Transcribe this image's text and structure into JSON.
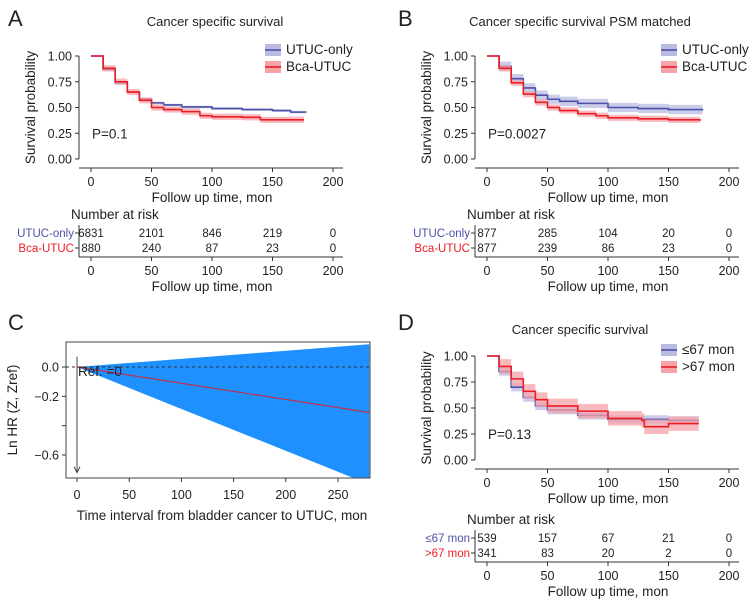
{
  "colors": {
    "blue": "#4b50a8",
    "blue_band": "#b9bbe2",
    "red": "#ec1c24",
    "red_band": "#f6a3aa",
    "hr_band": "#1e90ff",
    "hr_line": "#c0304a"
  },
  "chart_data": [
    {
      "panel": "A",
      "type": "line",
      "title": "Cancer specific survival",
      "xlabel": "Follow up time, mon",
      "ylabel": "Survival probability",
      "xlim": [
        0,
        200
      ],
      "ylim": [
        0,
        1
      ],
      "xticks": [
        "0",
        "50",
        "100",
        "150",
        "200"
      ],
      "yticks": [
        "0.00",
        "0.25",
        "0.50",
        "0.75",
        "1.00"
      ],
      "pvalue": "P=0.1",
      "legend_position": "top-right",
      "series": [
        {
          "name": "UTUC-only",
          "color": "blue",
          "x": [
            0,
            10,
            20,
            30,
            40,
            50,
            60,
            75,
            100,
            125,
            150,
            165,
            178
          ],
          "y": [
            1,
            0.87,
            0.74,
            0.65,
            0.58,
            0.545,
            0.525,
            0.505,
            0.49,
            0.48,
            0.47,
            0.455,
            0.455
          ],
          "band": 0.012
        },
        {
          "name": "Bca-UTUC",
          "color": "red",
          "x": [
            0,
            10,
            20,
            30,
            40,
            50,
            60,
            75,
            90,
            100,
            125,
            140,
            176
          ],
          "y": [
            1,
            0.88,
            0.75,
            0.65,
            0.57,
            0.5,
            0.48,
            0.46,
            0.42,
            0.41,
            0.405,
            0.38,
            0.38
          ],
          "band": 0.03
        }
      ],
      "risk_title": "Number at risk",
      "risk_table": [
        {
          "name": "UTUC-only",
          "color": "blue",
          "values": [
            "6831",
            "2101",
            "846",
            "219",
            "0"
          ]
        },
        {
          "name": "Bca-UTUC",
          "color": "red",
          "values": [
            "880",
            "240",
            "87",
            "23",
            "0"
          ]
        }
      ]
    },
    {
      "panel": "B",
      "type": "line",
      "title": "Cancer specific survival PSM matched",
      "xlabel": "Follow up time, mon",
      "ylabel": "Survival probability",
      "xlim": [
        0,
        200
      ],
      "ylim": [
        0,
        1
      ],
      "xticks": [
        "0",
        "50",
        "100",
        "150",
        "200"
      ],
      "yticks": [
        "0.00",
        "0.25",
        "0.50",
        "0.75",
        "1.00"
      ],
      "pvalue": "P=0.0027",
      "legend_position": "top-right",
      "series": [
        {
          "name": "UTUC-only",
          "color": "blue",
          "x": [
            0,
            10,
            20,
            30,
            40,
            50,
            60,
            75,
            100,
            125,
            150,
            178
          ],
          "y": [
            1,
            0.9,
            0.78,
            0.69,
            0.62,
            0.58,
            0.56,
            0.54,
            0.5,
            0.49,
            0.48,
            0.47
          ],
          "band": 0.045
        },
        {
          "name": "Bca-UTUC",
          "color": "red",
          "x": [
            0,
            10,
            20,
            30,
            40,
            50,
            60,
            75,
            90,
            100,
            125,
            150,
            176
          ],
          "y": [
            1,
            0.88,
            0.74,
            0.63,
            0.55,
            0.5,
            0.47,
            0.44,
            0.42,
            0.4,
            0.39,
            0.38,
            0.37
          ],
          "band": 0.03
        }
      ],
      "risk_title": "Number at risk",
      "risk_table": [
        {
          "name": "UTUC-only",
          "color": "blue",
          "values": [
            "877",
            "285",
            "104",
            "20",
            "0"
          ]
        },
        {
          "name": "Bca-UTUC",
          "color": "red",
          "values": [
            "877",
            "239",
            "86",
            "23",
            "0"
          ]
        }
      ]
    },
    {
      "panel": "C",
      "type": "area",
      "xlabel": "Time interval from bladder cancer to UTUC, mon",
      "ylabel": "Ln HR (Z, Zref)",
      "xlim": [
        -10,
        280
      ],
      "ylim": [
        -0.76,
        0.17
      ],
      "xticks": [
        0,
        50,
        100,
        150,
        200,
        250
      ],
      "yticks": [
        "0.0",
        "-0.2",
        "",
        "-0.6"
      ],
      "ytick_values": [
        0,
        -0.2,
        -0.4,
        -0.6
      ],
      "reference_label": "Ref. =0",
      "estimate": {
        "x": [
          0,
          280
        ],
        "y": [
          0,
          -0.31
        ]
      },
      "ci_upper": {
        "x": [
          0,
          280
        ],
        "y": [
          0,
          0.155
        ]
      },
      "ci_lower": {
        "x": [
          0,
          280
        ],
        "y": [
          0,
          -0.8
        ]
      }
    },
    {
      "panel": "D",
      "type": "line",
      "title": "Cancer specific survival",
      "xlabel": "Follow up time, mon",
      "ylabel": "Survival probability",
      "xlim": [
        0,
        200
      ],
      "ylim": [
        0,
        1
      ],
      "xticks": [
        "0",
        "50",
        "100",
        "150",
        "200"
      ],
      "yticks": [
        "0.00",
        "0.25",
        "0.50",
        "0.75",
        "1.00"
      ],
      "pvalue": "P=0.13",
      "legend_position": "top-right",
      "series": [
        {
          "name": "≤67 mon",
          "color": "blue",
          "x": [
            0,
            10,
            20,
            30,
            40,
            50,
            75,
            100,
            150,
            175
          ],
          "y": [
            1,
            0.85,
            0.7,
            0.6,
            0.52,
            0.48,
            0.43,
            0.39,
            0.38,
            0.38
          ],
          "band": 0.04
        },
        {
          "name": ">67 mon",
          "color": "red",
          "x": [
            0,
            10,
            20,
            30,
            40,
            50,
            75,
            100,
            128,
            130,
            150,
            175
          ],
          "y": [
            1,
            0.9,
            0.78,
            0.66,
            0.58,
            0.52,
            0.47,
            0.4,
            0.38,
            0.32,
            0.35,
            0.35
          ],
          "band": 0.07
        }
      ],
      "risk_title": "Number at risk",
      "risk_table": [
        {
          "name": "≤67 mon",
          "color": "blue",
          "values": [
            "539",
            "157",
            "67",
            "21",
            "0"
          ]
        },
        {
          "name": ">67 mon",
          "color": "red",
          "values": [
            "341",
            "83",
            "20",
            "2",
            "0"
          ]
        }
      ]
    }
  ]
}
